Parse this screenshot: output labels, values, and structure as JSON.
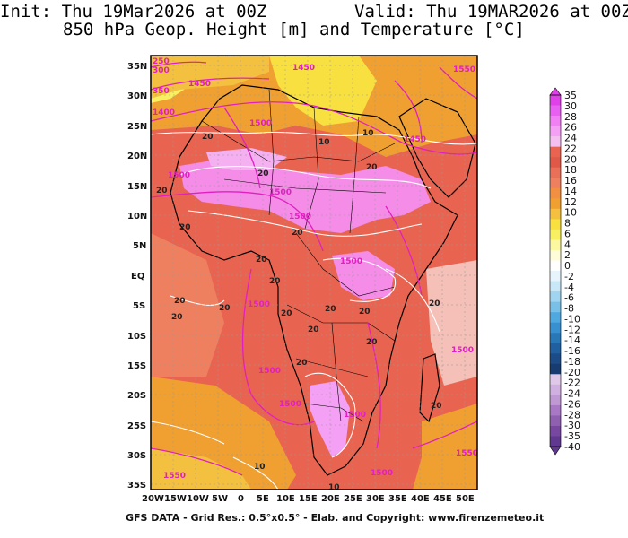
{
  "header": {
    "init": "Init: Thu 19Mar2026 at 00Z",
    "valid": "Valid: Thu 19MAR2026 at 00Z",
    "subtitle": "850 hPa Geop. Height [m] and Temperature [°C]"
  },
  "map": {
    "lat_labels": [
      "35N",
      "30N",
      "25N",
      "20N",
      "15N",
      "10N",
      "5N",
      "EQ",
      "5S",
      "10S",
      "15S",
      "20S",
      "25S",
      "30S",
      "35S"
    ],
    "lon_labels": [
      "20W",
      "15W",
      "10W",
      "5W",
      "0",
      "5E",
      "10E",
      "15E",
      "20E",
      "25E",
      "30E",
      "35E",
      "40E",
      "45E",
      "50E"
    ],
    "height_contours": [
      "1550",
      "1500",
      "1450",
      "1400",
      "350",
      "300",
      "250",
      "1500",
      "1500",
      "1500",
      "1500",
      "1500",
      "1500",
      "1500",
      "1500",
      "1500",
      "1450",
      "1450",
      "1550",
      "1550",
      "1500"
    ],
    "temp_contours": [
      "10",
      "10",
      "10",
      "20",
      "20",
      "20",
      "20",
      "20",
      "20",
      "20",
      "20",
      "20",
      "20",
      "20",
      "20",
      "20",
      "20",
      "20",
      "20",
      "20",
      "20",
      "20",
      "10",
      "10"
    ],
    "colors": {
      "hot": "#e86450",
      "warm": "#f0a030",
      "pink": "#f48ce8",
      "yellow": "#f8f050",
      "cool": "#f4c0b8",
      "height_line": "#e020c0",
      "temp_line": "#ffffff",
      "coast": "#000000"
    }
  },
  "colorbar": {
    "labels": [
      "35",
      "30",
      "28",
      "26",
      "24",
      "22",
      "20",
      "18",
      "16",
      "14",
      "12",
      "10",
      "8",
      "6",
      "4",
      "2",
      "0",
      "-2",
      "-4",
      "-6",
      "-8",
      "-10",
      "-12",
      "-14",
      "-16",
      "-18",
      "-20",
      "-22",
      "-24",
      "-26",
      "-28",
      "-30",
      "-35",
      "-40"
    ],
    "colors": [
      "#e040e8",
      "#e860f0",
      "#f080f4",
      "#f4a0f4",
      "#f4c0f0",
      "#e86450",
      "#e05848",
      "#e87058",
      "#ee8060",
      "#f09040",
      "#f0a030",
      "#f4c040",
      "#f8e040",
      "#f8f060",
      "#fcf8a0",
      "#fffcd8",
      "#ffffff",
      "#e8f4fc",
      "#c8e8f8",
      "#a0d4f0",
      "#78c0e8",
      "#50a8e0",
      "#3890d0",
      "#2878b8",
      "#2060a0",
      "#1c4c88",
      "#183c70",
      "#e0c8e8",
      "#d0b0e0",
      "#c098d4",
      "#a878c4",
      "#9060b0",
      "#7848a0",
      "#603890"
    ]
  },
  "footer": {
    "text": "GFS DATA - Grid Res.: 0.5°x0.5° - Elab. and Copyright: www.firenzemeteo.it"
  }
}
